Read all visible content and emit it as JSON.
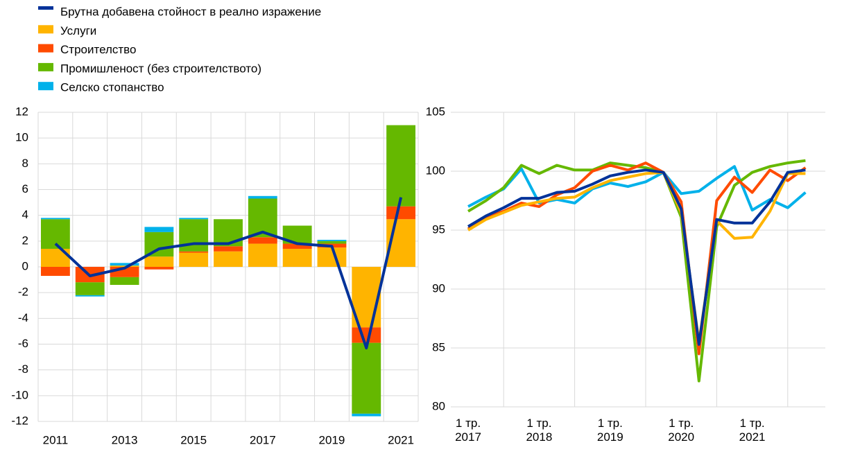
{
  "chart_data": [
    {
      "type": "bar",
      "stacked": true,
      "grid": true,
      "categories": [
        "2011",
        null,
        "2013",
        null,
        "2015",
        null,
        "2017",
        null,
        "2019",
        null,
        "2021"
      ],
      "ylim": [
        -12,
        12
      ],
      "yticks": [
        -12,
        -10,
        -8,
        -6,
        -4,
        -2,
        0,
        2,
        4,
        6,
        8,
        10,
        12
      ],
      "series": [
        {
          "name": "Брутна добавена стойност в реално изражение",
          "type": "line",
          "color": "#003299",
          "values": [
            1.8,
            -0.7,
            -0.1,
            1.4,
            1.8,
            1.8,
            2.7,
            1.8,
            1.6,
            -6.3,
            5.4
          ]
        },
        {
          "name": "Услуги",
          "color": "#ffb400",
          "values": [
            1.4,
            0,
            0.1,
            0.8,
            1.1,
            1.2,
            1.8,
            1.4,
            1.5,
            -4.7,
            3.7
          ]
        },
        {
          "name": "Строителство",
          "color": "#ff4b00",
          "values": [
            -0.7,
            -1.2,
            -0.8,
            -0.2,
            0.1,
            0.4,
            0.5,
            0.4,
            0.3,
            -1.2,
            1.0
          ]
        },
        {
          "name": "Промишленост (без строителството)",
          "color": "#65b800",
          "values": [
            2.3,
            -1.0,
            -0.6,
            1.9,
            2.5,
            2.1,
            3.0,
            1.4,
            0.2,
            -5.5,
            6.3
          ]
        },
        {
          "name": "Селско стопанство",
          "color": "#00b1ea",
          "values": [
            0.1,
            -0.1,
            0.2,
            0.4,
            0.1,
            0,
            0.2,
            0,
            0.1,
            -0.2,
            0
          ]
        }
      ]
    },
    {
      "type": "line",
      "grid": true,
      "categories": [
        "1 тр.\n2017",
        null,
        null,
        null,
        "1 тр.\n2018",
        null,
        null,
        null,
        "1 тр.\n2019",
        null,
        null,
        null,
        "1 тр.\n2020",
        null,
        null,
        null,
        "1 тр.\n2021",
        null,
        null,
        null
      ],
      "ylim": [
        80,
        105
      ],
      "yticks": [
        80,
        85,
        90,
        95,
        100,
        105
      ],
      "series": [
        {
          "color": "#003299",
          "values": [
            95.3,
            96.2,
            96.9,
            97.7,
            97.7,
            98.2,
            98.3,
            98.9,
            99.6,
            99.9,
            100.1,
            99.9,
            96.8,
            85.3,
            95.9,
            95.6,
            95.6,
            97.4,
            99.9,
            100.1
          ]
        },
        {
          "color": "#ffb400",
          "values": [
            95.0,
            95.9,
            96.5,
            97.1,
            97.4,
            97.7,
            97.8,
            98.6,
            99.2,
            99.5,
            99.8,
            99.9,
            96.5,
            85.5,
            95.8,
            94.3,
            94.4,
            96.6,
            99.8,
            99.8
          ]
        },
        {
          "color": "#ff4b00",
          "values": [
            95.1,
            96.1,
            96.6,
            97.3,
            97.0,
            98.0,
            98.6,
            100.0,
            100.5,
            100.1,
            100.7,
            99.9,
            97.4,
            84.5,
            97.5,
            99.5,
            98.2,
            100.1,
            99.2,
            100.3
          ]
        },
        {
          "color": "#65b800",
          "values": [
            96.6,
            97.5,
            98.6,
            100.5,
            99.8,
            100.5,
            100.1,
            100.1,
            100.7,
            100.5,
            100.3,
            99.9,
            96.1,
            82.2,
            95.3,
            98.8,
            99.9,
            100.4,
            100.7,
            100.9
          ]
        },
        {
          "color": "#00b1ea",
          "values": [
            97.0,
            97.8,
            98.5,
            100.2,
            97.3,
            97.6,
            97.3,
            98.5,
            99.0,
            98.7,
            99.1,
            99.9,
            98.1,
            98.3,
            99.4,
            100.4,
            96.7,
            97.6,
            96.9,
            98.2
          ]
        }
      ]
    }
  ]
}
